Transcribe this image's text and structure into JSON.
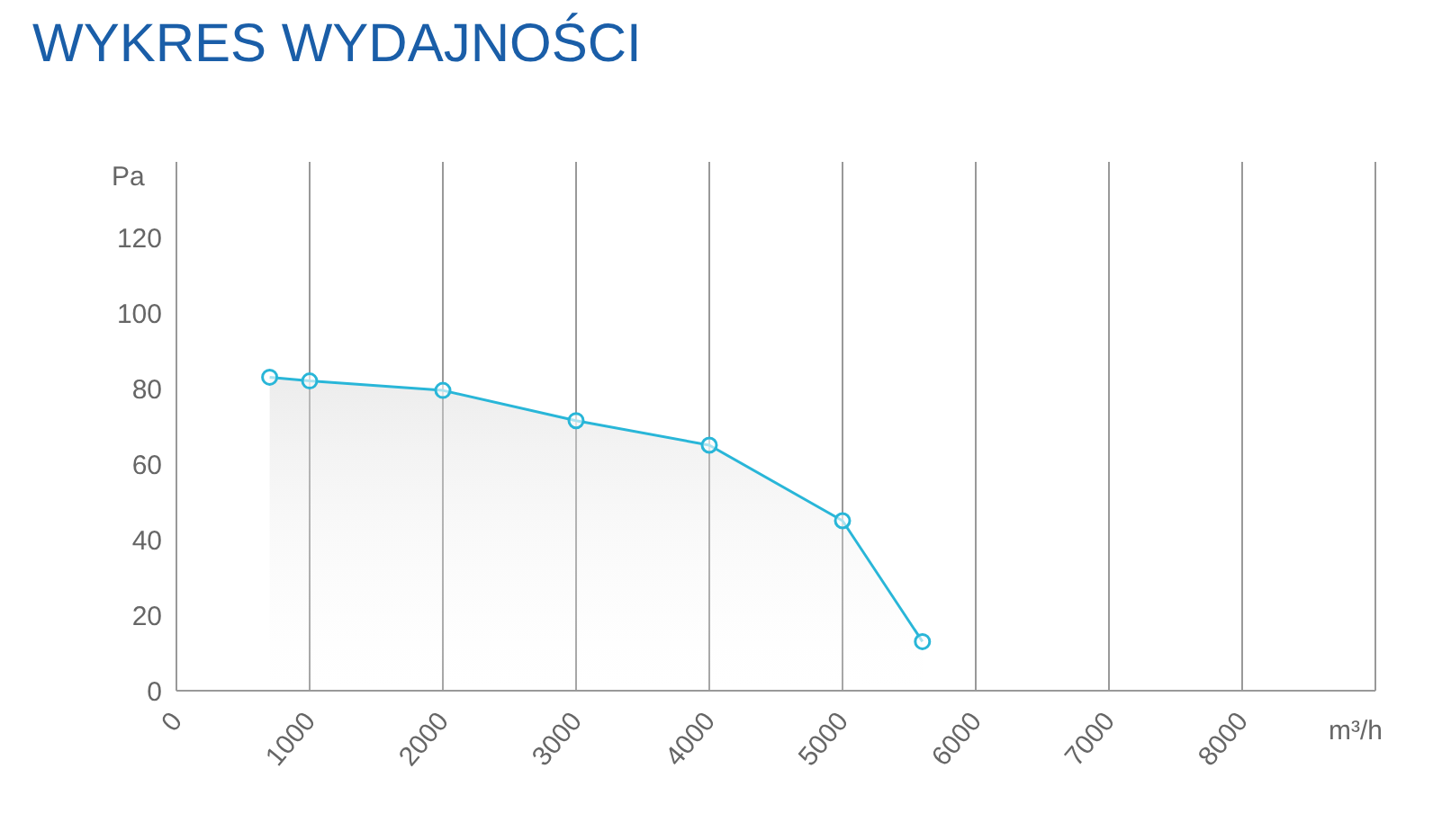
{
  "chart_data": {
    "type": "area",
    "title": "WYKRES WYDAJNOŚCI",
    "xlabel": "m³/h",
    "ylabel": "Pa",
    "x": [
      700,
      1000,
      2000,
      3000,
      4000,
      5000,
      5600
    ],
    "series": [
      {
        "color": "#29b6d8",
        "values": [
          83,
          82,
          79.5,
          71.5,
          65,
          45,
          13
        ]
      }
    ],
    "xlim": [
      0,
      9000
    ],
    "xticks": [
      0,
      1000,
      2000,
      3000,
      4000,
      5000,
      6000,
      7000,
      8000
    ],
    "ylim": [
      0,
      140
    ],
    "yticks": [
      0,
      20,
      40,
      60,
      80,
      100,
      120
    ],
    "grid": "x",
    "marker": "circle",
    "line_style": "solid"
  }
}
